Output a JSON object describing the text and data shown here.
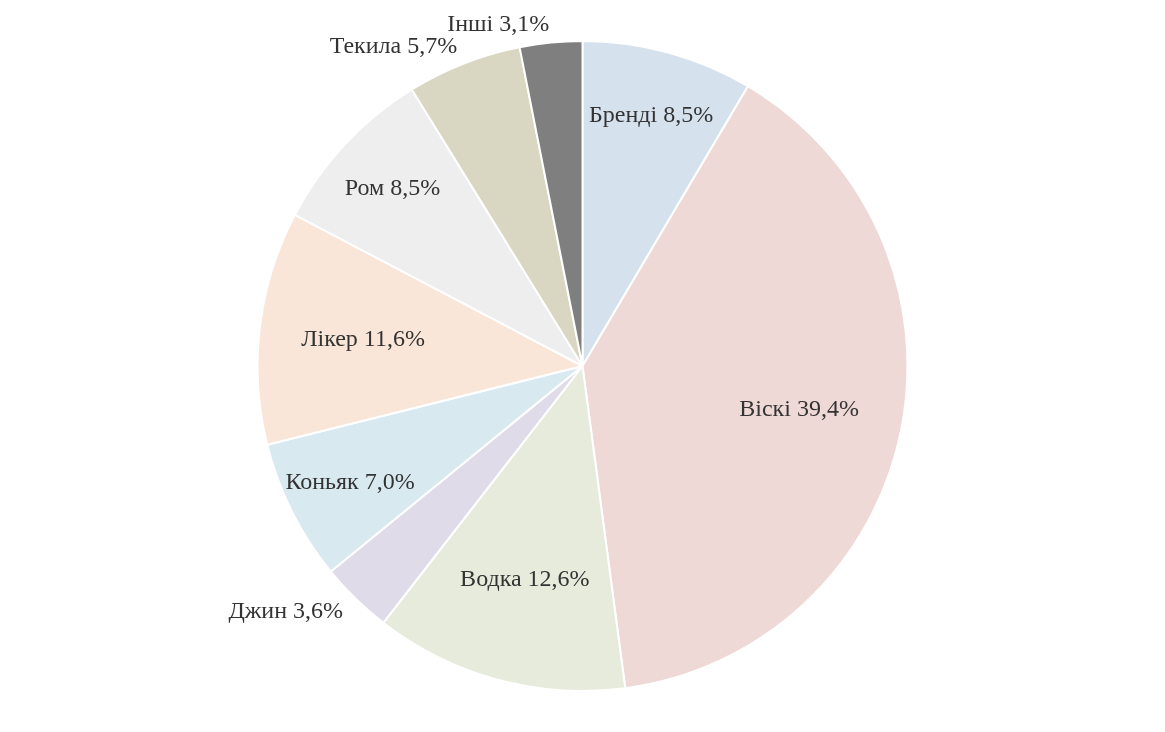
{
  "chart_data": {
    "type": "pie",
    "categories": [
      "Бренді",
      "Віскі",
      "Водка",
      "Джин",
      "Коньяк",
      "Лікер",
      "Ром",
      "Текила",
      "Інші"
    ],
    "values": [
      8.5,
      39.4,
      12.6,
      3.6,
      7.0,
      11.6,
      8.5,
      5.7,
      3.1
    ],
    "value_labels": [
      "8,5%",
      "39,4%",
      "12,6%",
      "3,6%",
      "7,0%",
      "11,6%",
      "8,5%",
      "5,7%",
      "3,1%"
    ],
    "colors": [
      "#d6e1ee",
      "#efd9d6",
      "#e6ebdc",
      "#e0dbe9",
      "#d8e9f0",
      "#fae6d8",
      "#eeeeee",
      "#d9d7c2",
      "#7f7f7f"
    ],
    "legend": false
  }
}
